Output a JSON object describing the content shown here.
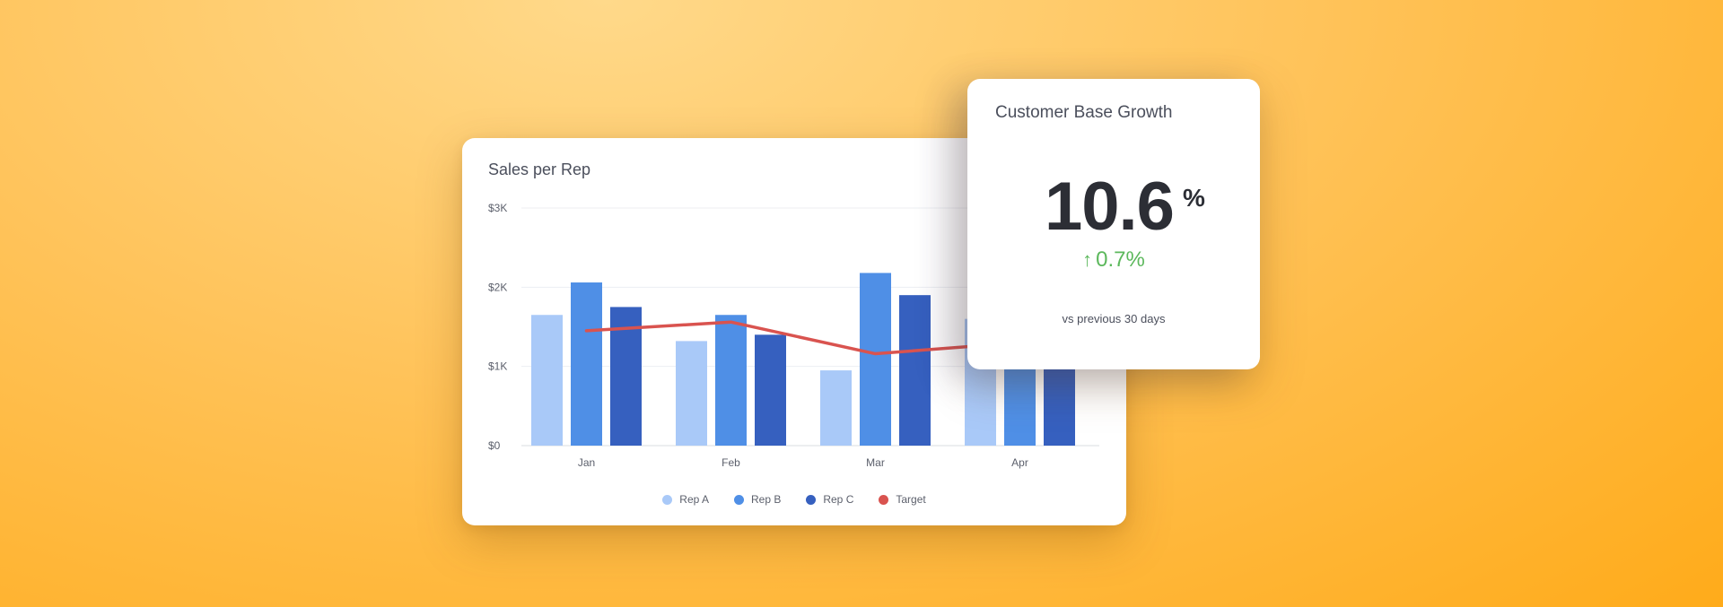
{
  "colors": {
    "rep_a": "#a9c9f8",
    "rep_b": "#4f8fe6",
    "rep_c": "#3660bf",
    "target": "#d9534f",
    "positive": "#5cb85c"
  },
  "kpi": {
    "title": "Customer Base Growth",
    "value": "10.6",
    "unit": "%",
    "change_arrow": "↑",
    "change": "0.7%",
    "caption": "vs previous 30 days"
  },
  "chart_data": {
    "type": "bar",
    "title": "Sales per Rep",
    "xlabel": "",
    "ylabel": "",
    "categories": [
      "Jan",
      "Feb",
      "Mar",
      "Apr"
    ],
    "y_ticks": [
      "$0",
      "$1K",
      "$2K",
      "$3K"
    ],
    "ylim": [
      0,
      3000
    ],
    "grid": true,
    "legend_placement": "bottom",
    "series": [
      {
        "name": "Rep A",
        "color": "#a9c9f8",
        "values": [
          1650,
          1320,
          950,
          1600
        ]
      },
      {
        "name": "Rep B",
        "color": "#4f8fe6",
        "values": [
          2060,
          1650,
          2180,
          1900
        ]
      },
      {
        "name": "Rep C",
        "color": "#3660bf",
        "values": [
          1750,
          1400,
          1900,
          1700
        ]
      }
    ],
    "line_series": {
      "name": "Target",
      "color": "#d9534f",
      "values": [
        1450,
        1560,
        1160,
        1300
      ]
    }
  }
}
